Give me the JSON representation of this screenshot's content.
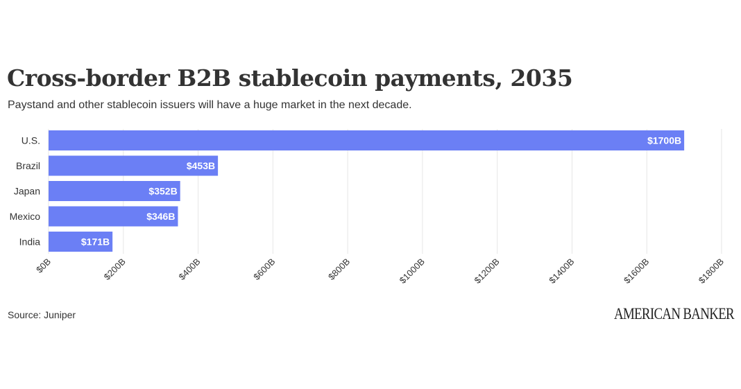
{
  "header": {
    "title": "Cross-border B2B stablecoin payments, 2035",
    "subtitle": "Paystand and other stablecoin issuers will have a huge market in the next decade."
  },
  "footer": {
    "source": "Source: Juniper",
    "logo_text": "AMERICAN BANKER"
  },
  "chart_data": {
    "type": "bar",
    "orientation": "horizontal",
    "categories": [
      "U.S.",
      "Brazil",
      "Japan",
      "Mexico",
      "India"
    ],
    "values": [
      1700,
      453,
      352,
      346,
      171
    ],
    "value_labels": [
      "$1700B",
      "$453B",
      "$352B",
      "$346B",
      "$171B"
    ],
    "title": "Cross-border B2B stablecoin payments, 2035",
    "xlabel": "",
    "ylabel": "",
    "xlim": [
      0,
      1800
    ],
    "x_ticks": [
      0,
      200,
      400,
      600,
      800,
      1000,
      1200,
      1400,
      1600,
      1800
    ],
    "x_tick_labels": [
      "$0B",
      "$200B",
      "$400B",
      "$600B",
      "$800B",
      "$1000B",
      "$1200B",
      "$1400B",
      "$1600B",
      "$1800B"
    ],
    "grid": true,
    "bar_color": "#6b7ff5",
    "label_color": "#ffffff"
  }
}
